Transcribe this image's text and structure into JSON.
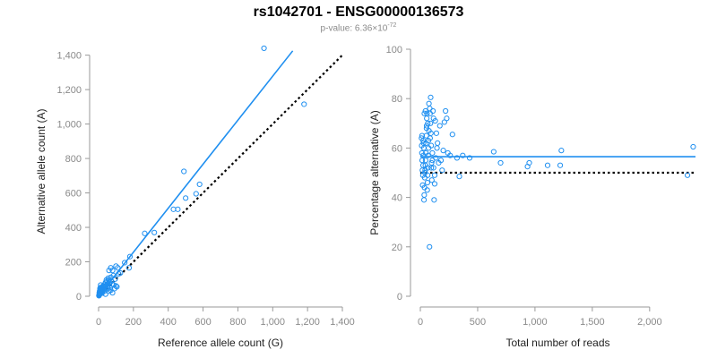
{
  "title": "rs1042701 - ENSG00000136573",
  "subtitle": {
    "prefix": "p-value: 6.36×10",
    "exponent": "-72"
  },
  "colors": {
    "points": "#1f8ff0",
    "fit": "#1f8ff0",
    "reference": "#000000",
    "axis": "#9a9a9a"
  },
  "chart_data": [
    {
      "type": "scatter",
      "xlabel": "Reference allele count (G)",
      "ylabel": "Alternative allele count (A)",
      "xlim": [
        0,
        1400
      ],
      "ylim": [
        0,
        1450
      ],
      "xticks": [
        0,
        200,
        400,
        600,
        800,
        1000,
        1200,
        1400
      ],
      "xtick_labels": [
        "0",
        "200",
        "400",
        "600",
        "800",
        "1,000",
        "1,200",
        "1,400"
      ],
      "yticks": [
        0,
        200,
        400,
        600,
        800,
        1000,
        1200,
        1400
      ],
      "ytick_labels": [
        "0",
        "200",
        "400",
        "600",
        "800",
        "1,000",
        "1,200",
        "1,400"
      ],
      "points": [
        [
          950,
          1440
        ],
        [
          1180,
          1115
        ],
        [
          490,
          725
        ],
        [
          580,
          650
        ],
        [
          560,
          595
        ],
        [
          500,
          570
        ],
        [
          430,
          505
        ],
        [
          455,
          505
        ],
        [
          265,
          365
        ],
        [
          320,
          370
        ],
        [
          180,
          230
        ],
        [
          150,
          195
        ],
        [
          175,
          165
        ],
        [
          110,
          165
        ],
        [
          100,
          175
        ],
        [
          70,
          165
        ],
        [
          60,
          150
        ],
        [
          80,
          150
        ],
        [
          85,
          120
        ],
        [
          95,
          100
        ],
        [
          70,
          110
        ],
        [
          55,
          105
        ],
        [
          45,
          95
        ],
        [
          40,
          80
        ],
        [
          35,
          70
        ],
        [
          50,
          70
        ],
        [
          30,
          60
        ],
        [
          25,
          55
        ],
        [
          20,
          50
        ],
        [
          15,
          40
        ],
        [
          12,
          30
        ],
        [
          10,
          25
        ],
        [
          8,
          20
        ],
        [
          6,
          15
        ],
        [
          5,
          10
        ],
        [
          4,
          8
        ],
        [
          3,
          5
        ],
        [
          2,
          3
        ],
        [
          18,
          35
        ],
        [
          22,
          45
        ],
        [
          28,
          38
        ],
        [
          32,
          48
        ],
        [
          38,
          55
        ],
        [
          42,
          62
        ],
        [
          48,
          85
        ],
        [
          52,
          60
        ],
        [
          58,
          95
        ],
        [
          62,
          80
        ],
        [
          66,
          50
        ],
        [
          72,
          90
        ],
        [
          78,
          70
        ],
        [
          88,
          65
        ],
        [
          92,
          45
        ],
        [
          100,
          60
        ],
        [
          105,
          55
        ],
        [
          115,
          130
        ],
        [
          125,
          135
        ],
        [
          26,
          60
        ],
        [
          14,
          45
        ],
        [
          9,
          35
        ],
        [
          16,
          22
        ],
        [
          20,
          18
        ],
        [
          24,
          30
        ],
        [
          30,
          40
        ],
        [
          36,
          30
        ],
        [
          44,
          40
        ],
        [
          60,
          30
        ],
        [
          70,
          35
        ],
        [
          80,
          20
        ],
        [
          40,
          12
        ],
        [
          12,
          65
        ],
        [
          10,
          50
        ],
        [
          8,
          45
        ],
        [
          6,
          30
        ],
        [
          4,
          20
        ],
        [
          55,
          45
        ]
      ],
      "fit_line": {
        "x": [
          0,
          1115
        ],
        "y": [
          0,
          1425
        ]
      },
      "reference_line": {
        "x": [
          0,
          1400
        ],
        "y": [
          0,
          1400
        ]
      }
    },
    {
      "type": "scatter",
      "xlabel": "Total number of reads",
      "ylabel": "Percentage alternative (A)",
      "xlim": [
        0,
        2400
      ],
      "ylim": [
        0,
        100
      ],
      "xticks": [
        0,
        500,
        1000,
        1500,
        2000
      ],
      "xtick_labels": [
        "0",
        "500",
        "1,000",
        "1,500",
        "2,000"
      ],
      "yticks": [
        0,
        20,
        40,
        60,
        80,
        100
      ],
      "ytick_labels": [
        "0",
        "20",
        "40",
        "60",
        "80",
        "100"
      ],
      "points": [
        [
          2380,
          60.5
        ],
        [
          2330,
          49
        ],
        [
          1230,
          59
        ],
        [
          1220,
          53
        ],
        [
          1110,
          53
        ],
        [
          950,
          54
        ],
        [
          935,
          52.5
        ],
        [
          700,
          54
        ],
        [
          640,
          58.5
        ],
        [
          430,
          56
        ],
        [
          370,
          57
        ],
        [
          340,
          48.5
        ],
        [
          320,
          56
        ],
        [
          280,
          65.5
        ],
        [
          260,
          57
        ],
        [
          230,
          72
        ],
        [
          220,
          75
        ],
        [
          210,
          70.5
        ],
        [
          180,
          55
        ],
        [
          170,
          69
        ],
        [
          150,
          62
        ],
        [
          140,
          66
        ],
        [
          130,
          71
        ],
        [
          125,
          45.5
        ],
        [
          120,
          39
        ],
        [
          115,
          72
        ],
        [
          110,
          75
        ],
        [
          105,
          55
        ],
        [
          100,
          47
        ],
        [
          95,
          52
        ],
        [
          90,
          80.5
        ],
        [
          85,
          74
        ],
        [
          80,
          20
        ],
        [
          75,
          78
        ],
        [
          72,
          60
        ],
        [
          70,
          63
        ],
        [
          68,
          57
        ],
        [
          66,
          52
        ],
        [
          64,
          49
        ],
        [
          62,
          46
        ],
        [
          60,
          43
        ],
        [
          58,
          74
        ],
        [
          56,
          72
        ],
        [
          54,
          68
        ],
        [
          52,
          65
        ],
        [
          50,
          62
        ],
        [
          48,
          58
        ],
        [
          46,
          55
        ],
        [
          44,
          53
        ],
        [
          42,
          51
        ],
        [
          40,
          50
        ],
        [
          38,
          48
        ],
        [
          36,
          44
        ],
        [
          34,
          41
        ],
        [
          32,
          39
        ],
        [
          30,
          60
        ],
        [
          28,
          62
        ],
        [
          26,
          57
        ],
        [
          24,
          53
        ],
        [
          22,
          49
        ],
        [
          20,
          45
        ],
        [
          18,
          51
        ],
        [
          16,
          55
        ],
        [
          14,
          58
        ],
        [
          12,
          61
        ],
        [
          10,
          64
        ],
        [
          55,
          69
        ],
        [
          65,
          70
        ],
        [
          75,
          67
        ],
        [
          85,
          64
        ],
        [
          95,
          61
        ],
        [
          105,
          58
        ],
        [
          115,
          52
        ],
        [
          125,
          49
        ],
        [
          135,
          56
        ],
        [
          145,
          60
        ],
        [
          160,
          54
        ],
        [
          190,
          51
        ],
        [
          200,
          59
        ],
        [
          240,
          58
        ],
        [
          82,
          76
        ],
        [
          88,
          70
        ],
        [
          92,
          66
        ],
        [
          98,
          54
        ],
        [
          45,
          75
        ],
        [
          35,
          74
        ],
        [
          25,
          63
        ],
        [
          15,
          65
        ]
      ],
      "fit_line": {
        "x": [
          0,
          2400
        ],
        "y": [
          56.5,
          56.5
        ]
      },
      "reference_line": {
        "x": [
          0,
          2400
        ],
        "y": [
          50,
          50
        ]
      }
    }
  ]
}
